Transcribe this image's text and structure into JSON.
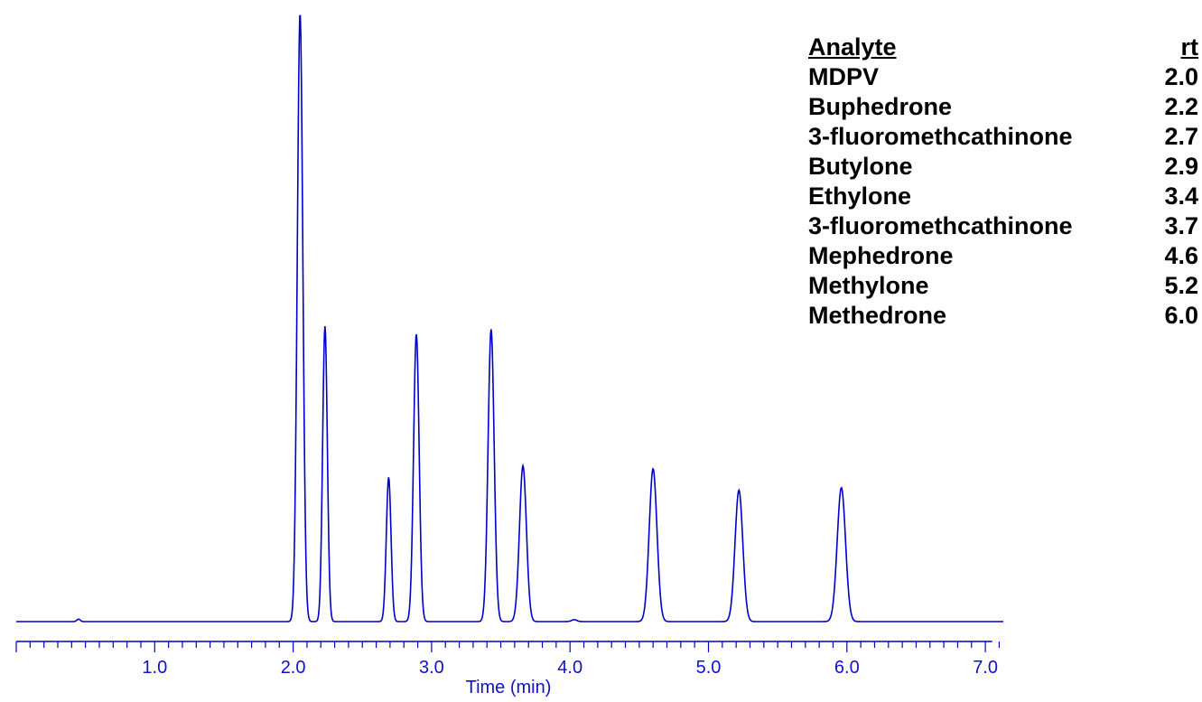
{
  "chart_data": {
    "type": "line",
    "xlabel": "Time (min)",
    "ylabel": "",
    "title": "",
    "xlim": [
      0.0,
      7.05
    ],
    "ylim": [
      0,
      100
    ],
    "x_ticks": [
      "1.0",
      "2.0",
      "3.0",
      "4.0",
      "5.0",
      "6.0",
      "7.0"
    ],
    "line_color": "#0000cc",
    "grid": false,
    "baseline": 0,
    "peaks": [
      {
        "t": 0.45,
        "h": 0.4,
        "w": 0.012
      },
      {
        "t": 2.05,
        "h": 100.0,
        "w": 0.02
      },
      {
        "t": 2.23,
        "h": 48.5,
        "w": 0.017
      },
      {
        "t": 2.69,
        "h": 23.7,
        "w": 0.017
      },
      {
        "t": 2.89,
        "h": 47.3,
        "w": 0.02
      },
      {
        "t": 3.43,
        "h": 48.0,
        "w": 0.022
      },
      {
        "t": 3.66,
        "h": 25.6,
        "w": 0.025
      },
      {
        "t": 4.03,
        "h": 0.3,
        "w": 0.02
      },
      {
        "t": 4.6,
        "h": 25.1,
        "w": 0.028
      },
      {
        "t": 5.22,
        "h": 21.6,
        "w": 0.028
      },
      {
        "t": 5.96,
        "h": 22.0,
        "w": 0.03
      }
    ],
    "legend": {
      "header": {
        "analyte": "Analyte",
        "rt": "rt"
      },
      "rows": [
        {
          "analyte": "MDPV",
          "rt": "2.0"
        },
        {
          "analyte": "Buphedrone",
          "rt": "2.2"
        },
        {
          "analyte": "3-fluoromethcathinone",
          "rt": "2.7"
        },
        {
          "analyte": "Butylone",
          "rt": "2.9"
        },
        {
          "analyte": "Ethylone",
          "rt": "3.4"
        },
        {
          "analyte": "3-fluoromethcathinone",
          "rt": "3.7"
        },
        {
          "analyte": "Mephedrone",
          "rt": "4.6"
        },
        {
          "analyte": "Methylone",
          "rt": "5.2"
        },
        {
          "analyte": "Methedrone",
          "rt": "6.0"
        }
      ]
    }
  }
}
